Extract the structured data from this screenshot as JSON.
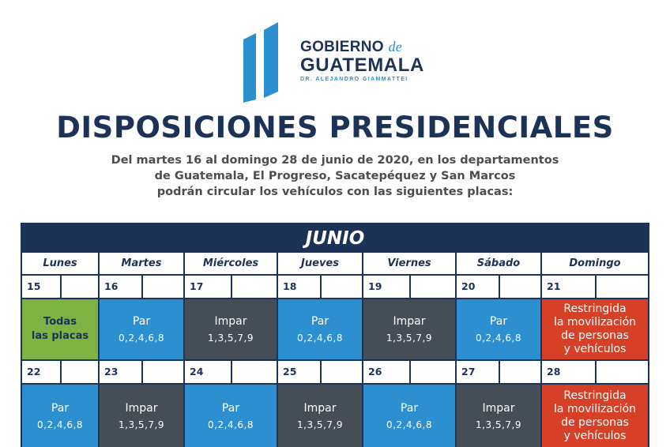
{
  "logo": {
    "line1_main": "GOBIERNO",
    "line1_de": "de",
    "line2": "GUATEMALA",
    "line3": "DR. ALEJANDRO GIAMMATTEI",
    "colors": {
      "navy": "#1d3257",
      "blue": "#2b8fd0"
    }
  },
  "title": "DISPOSICIONES PRESIDENCIALES",
  "subtitle_lines": [
    "Del martes 16 al domingo 28 de junio de 2020, en los departamentos",
    "de Guatemala, El Progreso, Sacatepéquez y San Marcos",
    "podrán circular los vehículos con las siguientes placas:"
  ],
  "calendar": {
    "month": "JUNIO",
    "days": [
      "Lunes",
      "Martes",
      "Miércoles",
      "Jueves",
      "Viernes",
      "Sábado",
      "Domingo"
    ],
    "colors": {
      "par": "#2b8fd0",
      "impar": "#454e57",
      "todas": "#7cb342",
      "restringida": "#d64026",
      "frame": "#1d3257"
    },
    "weeks": [
      {
        "dates": [
          "15",
          "16",
          "17",
          "18",
          "19",
          "20",
          "21"
        ],
        "cells": [
          {
            "type": "todas",
            "lines": [
              "Todas",
              "las placas"
            ]
          },
          {
            "type": "par",
            "title": "Par",
            "digits": "0,2,4,6,8"
          },
          {
            "type": "impar",
            "title": "Impar",
            "digits": "1,3,5,7,9"
          },
          {
            "type": "par",
            "title": "Par",
            "digits": "0,2,4,6,8"
          },
          {
            "type": "impar",
            "title": "Impar",
            "digits": "1,3,5,7,9"
          },
          {
            "type": "par",
            "title": "Par",
            "digits": "0,2,4,6,8"
          },
          {
            "type": "restr",
            "lines": [
              "Restringida",
              "la movilización",
              "de personas",
              "y vehículos"
            ]
          }
        ]
      },
      {
        "dates": [
          "22",
          "23",
          "24",
          "25",
          "26",
          "27",
          "28"
        ],
        "cells": [
          {
            "type": "par",
            "title": "Par",
            "digits": "0,2,4,6,8"
          },
          {
            "type": "impar",
            "title": "Impar",
            "digits": "1,3,5,7,9"
          },
          {
            "type": "par",
            "title": "Par",
            "digits": "0,2,4,6,8"
          },
          {
            "type": "impar",
            "title": "Impar",
            "digits": "1,3,5,7,9"
          },
          {
            "type": "par",
            "title": "Par",
            "digits": "0,2,4,6,8"
          },
          {
            "type": "impar",
            "title": "Impar",
            "digits": "1,3,5,7,9"
          },
          {
            "type": "restr",
            "lines": [
              "Restringida",
              "la movilización",
              "de personas",
              "y vehículos"
            ]
          }
        ]
      }
    ]
  }
}
